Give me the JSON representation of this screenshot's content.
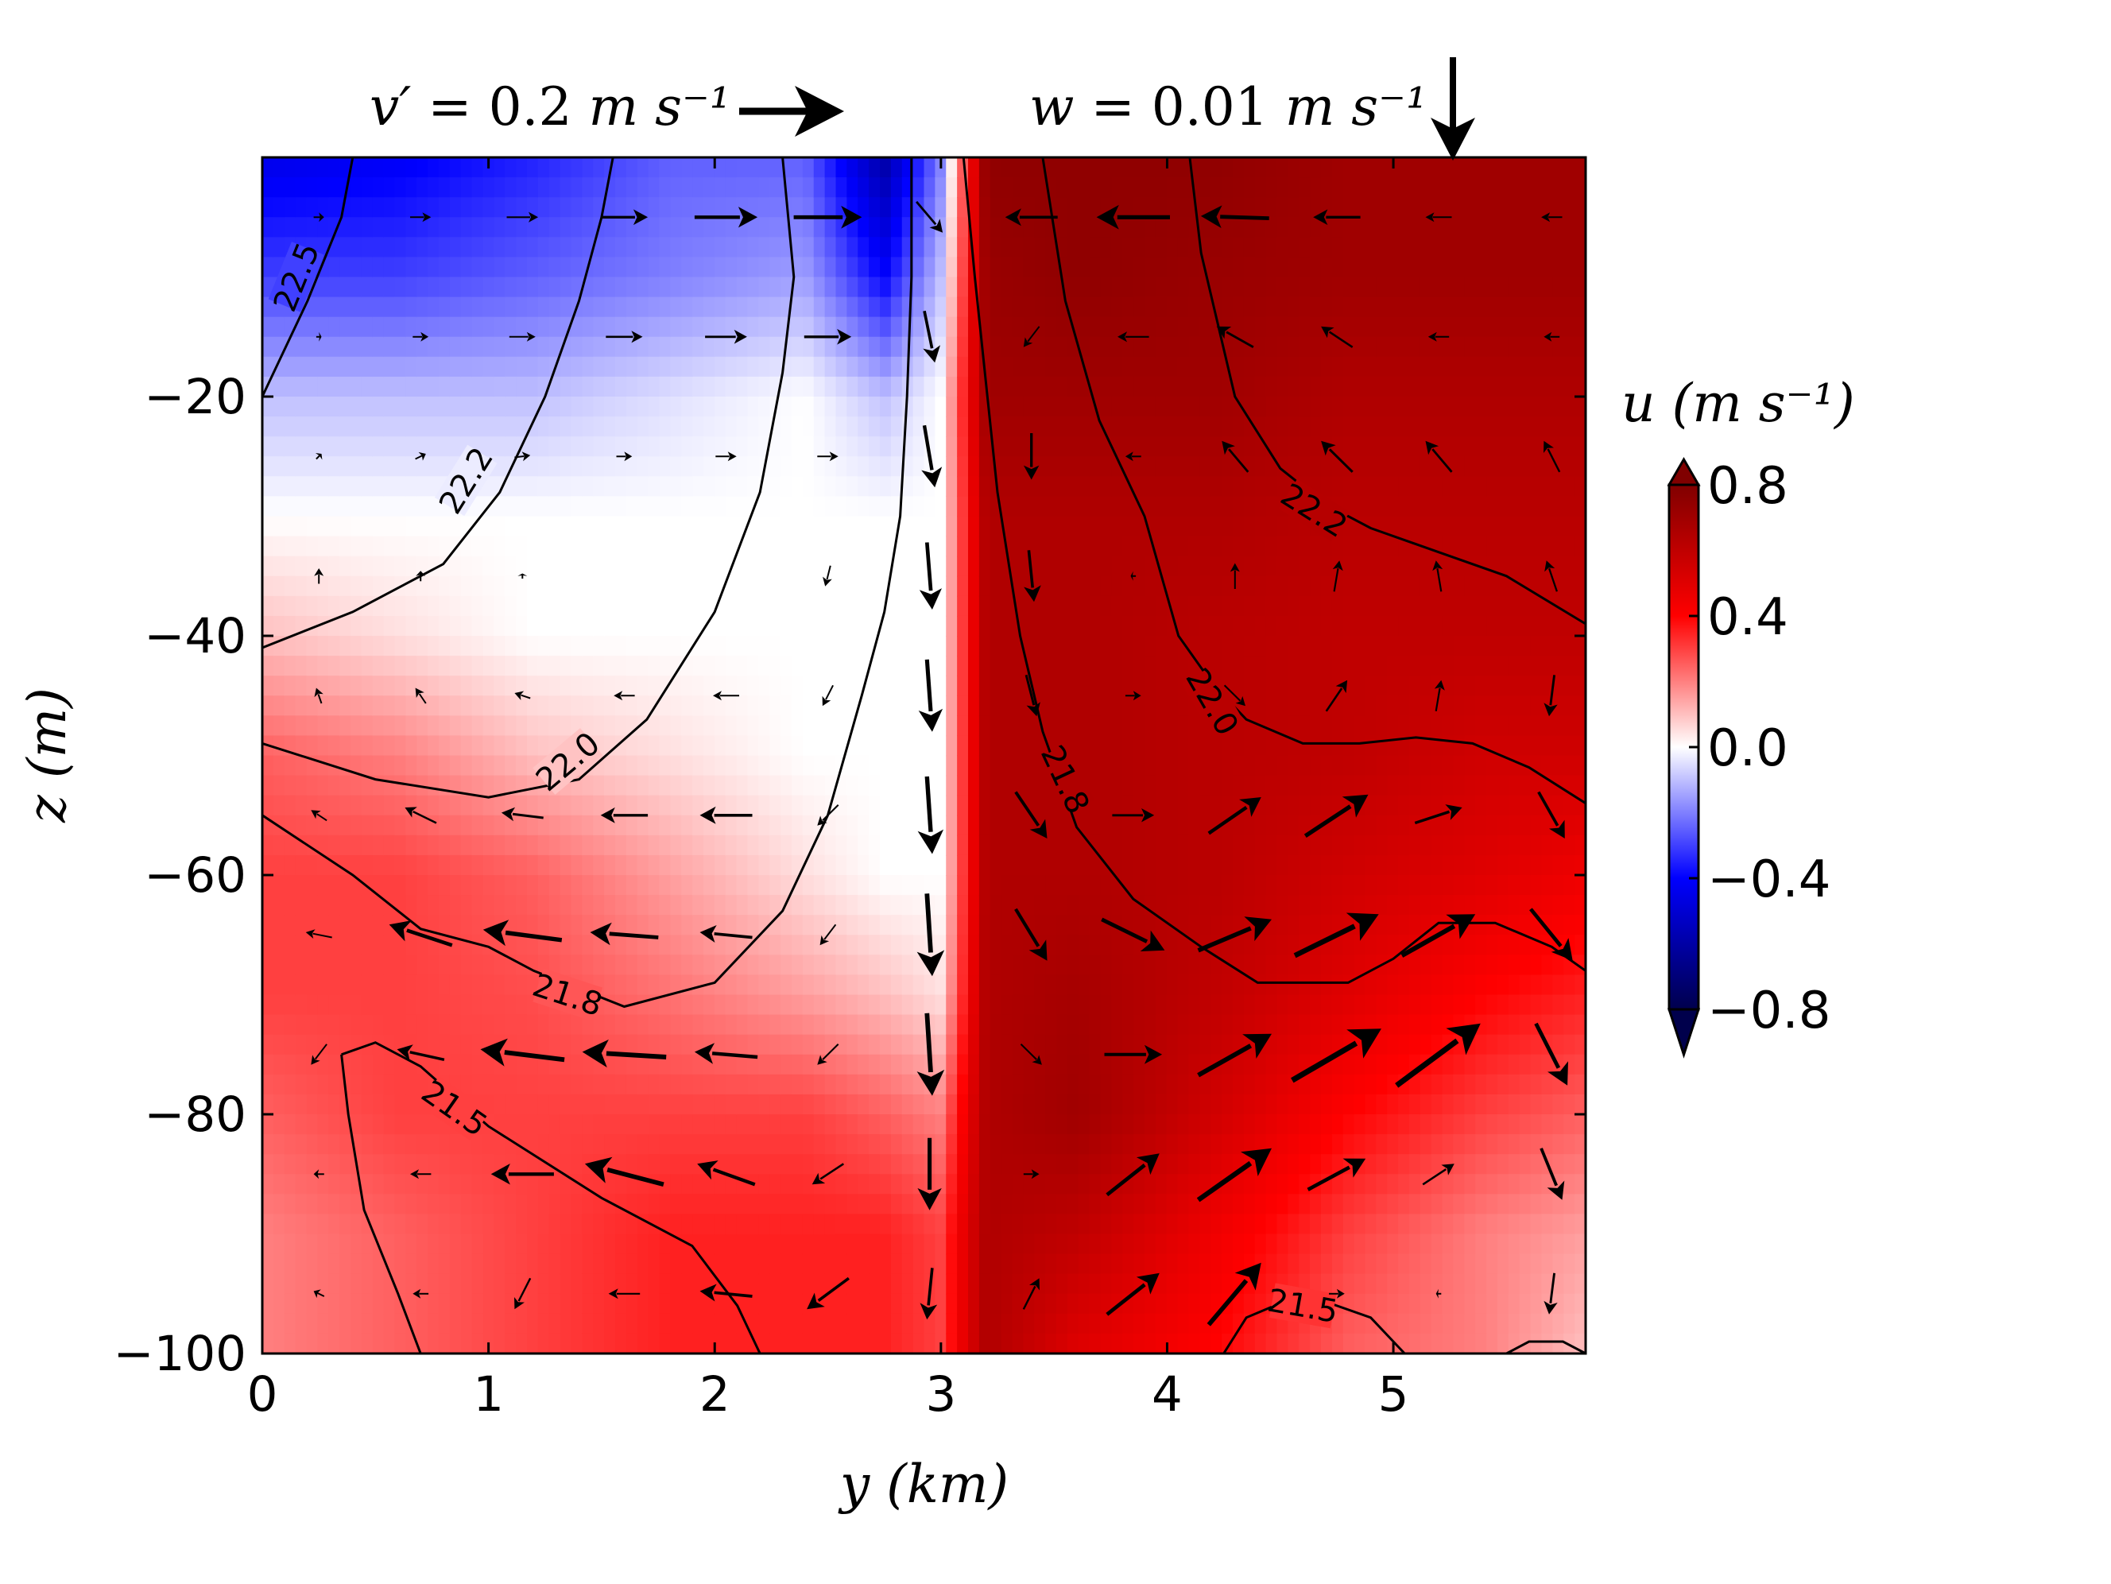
{
  "chart_data": {
    "type": "heatmap",
    "title": "",
    "xlabel": "y (km)",
    "ylabel": "z (m)",
    "xlim": [
      0,
      5.85
    ],
    "ylim": [
      -100,
      0
    ],
    "x_ticks": [
      "0",
      "1",
      "2",
      "3",
      "4",
      "5"
    ],
    "y_ticks": [
      "−20",
      "−40",
      "−60",
      "−80",
      "−100"
    ],
    "colorbar": {
      "label": "u (m s⁻¹)",
      "ticks": [
        "0.8",
        "0.4",
        "0.0",
        "−0.4",
        "−0.8"
      ],
      "range": [
        -0.8,
        0.8
      ],
      "colormap": "seismic",
      "extend": "both"
    },
    "quiver_keys": {
      "v_key": {
        "symbol": "v′",
        "value": "0.2",
        "unit": "m s⁻¹"
      },
      "w_key": {
        "symbol": "w",
        "value": "0.01",
        "unit": "m s⁻¹"
      }
    },
    "contour_levels": [
      "22.5",
      "22.2",
      "22.0",
      "21.8",
      "21.5"
    ],
    "colors": {
      "negative": "#5b5bff",
      "zero": "#ffffff",
      "positive": "#d40000",
      "strong_positive": "#a30000",
      "contour": "#000000"
    },
    "u_field_columns": [
      {
        "y": 0.0,
        "u": [
          -0.45,
          -0.3,
          -0.1,
          0.0,
          0.1,
          0.25,
          0.3,
          0.3,
          0.25,
          0.2,
          0.2
        ]
      },
      {
        "y": 0.6,
        "u": [
          -0.42,
          -0.3,
          -0.1,
          0.0,
          0.05,
          0.2,
          0.3,
          0.3,
          0.3,
          0.25,
          0.25
        ]
      },
      {
        "y": 1.2,
        "u": [
          -0.35,
          -0.25,
          -0.1,
          0.0,
          0.0,
          0.1,
          0.25,
          0.28,
          0.3,
          0.3,
          0.3
        ]
      },
      {
        "y": 1.8,
        "u": [
          -0.25,
          -0.2,
          -0.05,
          0.0,
          0.0,
          0.05,
          0.15,
          0.22,
          0.3,
          0.35,
          0.35
        ]
      },
      {
        "y": 2.4,
        "u": [
          -0.25,
          -0.15,
          0.0,
          0.0,
          0.0,
          0.0,
          0.05,
          0.15,
          0.3,
          0.35,
          0.35
        ]
      },
      {
        "y": 2.75,
        "u": [
          -0.6,
          -0.4,
          -0.1,
          0.0,
          0.0,
          0.0,
          0.0,
          0.1,
          0.25,
          0.35,
          0.35
        ]
      },
      {
        "y": 3.0,
        "u": [
          -0.2,
          -0.1,
          0.0,
          0.0,
          0.0,
          0.0,
          0.0,
          0.05,
          0.2,
          0.3,
          0.3
        ]
      },
      {
        "y": 3.2,
        "u": [
          0.75,
          0.72,
          0.7,
          0.65,
          0.65,
          0.65,
          0.65,
          0.65,
          0.65,
          0.65,
          0.65
        ]
      },
      {
        "y": 3.6,
        "u": [
          0.75,
          0.75,
          0.7,
          0.65,
          0.65,
          0.65,
          0.65,
          0.68,
          0.7,
          0.6,
          0.5
        ]
      },
      {
        "y": 4.2,
        "u": [
          0.75,
          0.72,
          0.7,
          0.65,
          0.62,
          0.62,
          0.62,
          0.6,
          0.55,
          0.45,
          0.4
        ]
      },
      {
        "y": 4.8,
        "u": [
          0.7,
          0.7,
          0.65,
          0.62,
          0.6,
          0.6,
          0.55,
          0.5,
          0.4,
          0.3,
          0.25
        ]
      },
      {
        "y": 5.4,
        "u": [
          0.7,
          0.7,
          0.65,
          0.62,
          0.6,
          0.55,
          0.5,
          0.4,
          0.3,
          0.2,
          0.2
        ]
      },
      {
        "y": 5.85,
        "u": [
          0.7,
          0.7,
          0.65,
          0.62,
          0.6,
          0.55,
          0.45,
          0.35,
          0.25,
          0.15,
          0.1
        ]
      }
    ],
    "u_field_z": [
      0,
      -10,
      -20,
      -30,
      -40,
      -50,
      -60,
      -70,
      -80,
      -90,
      -100
    ],
    "contours": [
      {
        "level": "22.5",
        "points": [
          [
            0,
            -20
          ],
          [
            0.2,
            -12
          ],
          [
            0.35,
            -5
          ],
          [
            0.4,
            0
          ]
        ]
      },
      {
        "level": "22.2",
        "points": [
          [
            0,
            -41
          ],
          [
            0.4,
            -38
          ],
          [
            0.8,
            -34
          ],
          [
            1.05,
            -28
          ],
          [
            1.25,
            -20
          ],
          [
            1.4,
            -12
          ],
          [
            1.5,
            -5
          ],
          [
            1.55,
            0
          ]
        ]
      },
      {
        "level": "22.0",
        "points": [
          [
            0,
            -49
          ],
          [
            0.5,
            -52
          ],
          [
            1.0,
            -53.5
          ],
          [
            1.4,
            -52
          ],
          [
            1.7,
            -47
          ],
          [
            2.0,
            -38
          ],
          [
            2.2,
            -28
          ],
          [
            2.3,
            -18
          ],
          [
            2.35,
            -10
          ],
          [
            2.3,
            0
          ]
        ]
      },
      {
        "level": "21.8",
        "points": [
          [
            0,
            -55
          ],
          [
            0.4,
            -60
          ],
          [
            0.7,
            -64.5
          ],
          [
            1.0,
            -66
          ],
          [
            1.2,
            -68
          ],
          [
            1.6,
            -71
          ],
          [
            2.0,
            -69
          ],
          [
            2.3,
            -63
          ],
          [
            2.5,
            -55
          ],
          [
            2.65,
            -45
          ],
          [
            2.75,
            -38
          ],
          [
            2.82,
            -30
          ],
          [
            2.85,
            -20
          ],
          [
            2.87,
            -10
          ],
          [
            2.87,
            0
          ]
        ]
      },
      {
        "level": "21.5",
        "points": [
          [
            0.35,
            -75
          ],
          [
            0.5,
            -74
          ],
          [
            0.7,
            -76
          ],
          [
            1.0,
            -81
          ],
          [
            1.5,
            -87
          ],
          [
            1.9,
            -91
          ],
          [
            2.1,
            -96
          ],
          [
            2.2,
            -100
          ]
        ]
      },
      {
        "level": "21.5",
        "points": [
          [
            0.35,
            -75
          ],
          [
            0.38,
            -80
          ],
          [
            0.45,
            -88
          ],
          [
            0.6,
            -95
          ],
          [
            0.7,
            -100
          ]
        ]
      },
      {
        "level": "21.8",
        "points": [
          [
            3.1,
            0
          ],
          [
            3.15,
            -10
          ],
          [
            3.25,
            -28
          ],
          [
            3.35,
            -40
          ],
          [
            3.45,
            -48
          ],
          [
            3.6,
            -56
          ],
          [
            3.85,
            -62
          ],
          [
            4.15,
            -66
          ],
          [
            4.4,
            -69
          ],
          [
            4.8,
            -69
          ],
          [
            5.0,
            -67
          ],
          [
            5.2,
            -64
          ],
          [
            5.45,
            -64
          ],
          [
            5.7,
            -66
          ],
          [
            5.85,
            -68
          ]
        ]
      },
      {
        "level": "22.0",
        "points": [
          [
            3.45,
            0
          ],
          [
            3.55,
            -12
          ],
          [
            3.7,
            -22
          ],
          [
            3.9,
            -30
          ],
          [
            4.05,
            -40
          ],
          [
            4.2,
            -44
          ],
          [
            4.35,
            -47
          ],
          [
            4.6,
            -49
          ],
          [
            4.85,
            -49
          ],
          [
            5.1,
            -48.5
          ],
          [
            5.35,
            -49
          ],
          [
            5.6,
            -51
          ],
          [
            5.85,
            -54
          ]
        ]
      },
      {
        "level": "22.2",
        "points": [
          [
            4.1,
            0
          ],
          [
            4.15,
            -8
          ],
          [
            4.3,
            -20
          ],
          [
            4.5,
            -26
          ],
          [
            4.7,
            -29
          ],
          [
            4.9,
            -31
          ],
          [
            5.2,
            -33
          ],
          [
            5.5,
            -35
          ],
          [
            5.85,
            -39
          ]
        ]
      },
      {
        "level": "21.5",
        "points": [
          [
            4.25,
            -100
          ],
          [
            4.35,
            -97
          ],
          [
            4.6,
            -95
          ],
          [
            4.9,
            -97
          ],
          [
            5.0,
            -99
          ],
          [
            5.05,
            -100
          ]
        ]
      },
      {
        "level": "21.5",
        "points": [
          [
            5.5,
            -100
          ],
          [
            5.6,
            -99
          ],
          [
            5.75,
            -99
          ],
          [
            5.85,
            -100
          ]
        ]
      }
    ],
    "contour_labels": [
      {
        "level": "22.5",
        "y": 0.15,
        "z": -10,
        "angle": -68
      },
      {
        "level": "22.2",
        "y": 0.9,
        "z": -27,
        "angle": -58
      },
      {
        "level": "22.0",
        "y": 1.35,
        "z": -50.5,
        "angle": -40
      },
      {
        "level": "21.8",
        "y": 1.35,
        "z": -70,
        "angle": 18
      },
      {
        "level": "21.5",
        "y": 0.85,
        "z": -79.5,
        "angle": 35
      },
      {
        "level": "22.2",
        "y": 4.65,
        "z": -29.5,
        "angle": 32
      },
      {
        "level": "22.0",
        "y": 4.2,
        "z": -45.5,
        "angle": 60
      },
      {
        "level": "21.8",
        "y": 3.55,
        "z": -52,
        "angle": 65
      },
      {
        "level": "21.5",
        "y": 4.6,
        "z": -96,
        "angle": 10
      }
    ],
    "quiver_y": [
      0.25,
      0.7,
      1.15,
      1.6,
      2.05,
      2.5,
      2.95,
      3.4,
      3.85,
      4.3,
      4.75,
      5.2,
      5.7
    ],
    "quiver_z": [
      -5,
      -15,
      -25,
      -35,
      -45,
      -55,
      -65,
      -75,
      -85,
      -95
    ],
    "quiver_vectors": [
      [
        [
          0.02,
          0.0
        ],
        [
          0.04,
          0.0
        ],
        [
          0.06,
          0.0
        ],
        [
          0.09,
          0.0
        ],
        [
          0.12,
          0.0
        ],
        [
          0.13,
          0.0
        ],
        [
          0.05,
          -0.3
        ],
        [
          -0.1,
          0.0
        ],
        [
          -0.14,
          0.0
        ],
        [
          -0.13,
          0.02
        ],
        [
          -0.09,
          0.0
        ],
        [
          -0.05,
          0.0
        ],
        [
          -0.04,
          0.0
        ]
      ],
      [
        [
          0.01,
          0.0
        ],
        [
          0.03,
          0.0
        ],
        [
          0.05,
          0.0
        ],
        [
          0.07,
          0.0
        ],
        [
          0.08,
          0.0
        ],
        [
          0.09,
          0.0
        ],
        [
          0.02,
          -0.5
        ],
        [
          -0.03,
          -0.2
        ],
        [
          -0.06,
          0.0
        ],
        [
          -0.07,
          0.2
        ],
        [
          -0.06,
          0.2
        ],
        [
          -0.04,
          0.0
        ],
        [
          -0.03,
          0.0
        ]
      ],
      [
        [
          0.01,
          0.05
        ],
        [
          0.02,
          0.05
        ],
        [
          0.03,
          0.02
        ],
        [
          0.03,
          0.0
        ],
        [
          0.04,
          0.0
        ],
        [
          0.04,
          0.0
        ],
        [
          0.02,
          -0.6
        ],
        [
          0.0,
          -0.45
        ],
        [
          -0.03,
          0.0
        ],
        [
          -0.05,
          0.3
        ],
        [
          -0.06,
          0.3
        ],
        [
          -0.05,
          0.3
        ],
        [
          -0.03,
          0.3
        ]
      ],
      [
        [
          0.0,
          0.15
        ],
        [
          0.0,
          0.1
        ],
        [
          0.0,
          0.05
        ],
        [
          0.0,
          0.0
        ],
        [
          0.0,
          0.0
        ],
        [
          -0.01,
          -0.2
        ],
        [
          0.01,
          -0.65
        ],
        [
          0.01,
          -0.5
        ],
        [
          -0.01,
          0.0
        ],
        [
          0.0,
          0.25
        ],
        [
          0.01,
          0.3
        ],
        [
          -0.01,
          0.3
        ],
        [
          -0.02,
          0.3
        ]
      ],
      [
        [
          -0.01,
          0.15
        ],
        [
          -0.02,
          0.15
        ],
        [
          -0.03,
          0.05
        ],
        [
          -0.04,
          0.0
        ],
        [
          -0.05,
          0.0
        ],
        [
          -0.02,
          -0.2
        ],
        [
          0.01,
          -0.7
        ],
        [
          0.02,
          -0.4
        ],
        [
          0.03,
          0.0
        ],
        [
          0.04,
          -0.2
        ],
        [
          0.04,
          0.3
        ],
        [
          0.01,
          0.3
        ],
        [
          -0.01,
          -0.4
        ]
      ],
      [
        [
          -0.03,
          0.1
        ],
        [
          -0.06,
          0.15
        ],
        [
          -0.08,
          0.05
        ],
        [
          -0.09,
          0.0
        ],
        [
          -0.1,
          0.0
        ],
        [
          -0.04,
          -0.2
        ],
        [
          0.01,
          -0.75
        ],
        [
          0.06,
          -0.45
        ],
        [
          0.08,
          0.0
        ],
        [
          0.1,
          0.35
        ],
        [
          0.12,
          0.4
        ],
        [
          0.09,
          0.15
        ],
        [
          0.05,
          -0.45
        ]
      ],
      [
        [
          -0.05,
          0.05
        ],
        [
          -0.12,
          0.2
        ],
        [
          -0.15,
          0.1
        ],
        [
          -0.13,
          0.05
        ],
        [
          -0.1,
          0.05
        ],
        [
          -0.03,
          -0.2
        ],
        [
          0.01,
          -0.8
        ],
        [
          0.06,
          -0.5
        ],
        [
          0.12,
          -0.3
        ],
        [
          0.14,
          0.3
        ],
        [
          0.16,
          0.4
        ],
        [
          0.14,
          0.4
        ],
        [
          0.08,
          -0.5
        ]
      ],
      [
        [
          -0.03,
          -0.2
        ],
        [
          -0.09,
          0.1
        ],
        [
          -0.16,
          0.1
        ],
        [
          -0.16,
          0.05
        ],
        [
          -0.12,
          0.05
        ],
        [
          -0.04,
          -0.2
        ],
        [
          0.01,
          -0.8
        ],
        [
          0.04,
          -0.2
        ],
        [
          0.11,
          0.0
        ],
        [
          0.14,
          0.4
        ],
        [
          0.17,
          0.5
        ],
        [
          0.16,
          0.6
        ],
        [
          0.06,
          -0.6
        ]
      ],
      [
        [
          -0.02,
          0.0
        ],
        [
          -0.04,
          0.0
        ],
        [
          -0.12,
          0.0
        ],
        [
          -0.15,
          0.2
        ],
        [
          -0.11,
          0.2
        ],
        [
          -0.06,
          -0.2
        ],
        [
          0.0,
          -0.7
        ],
        [
          0.03,
          0.0
        ],
        [
          0.1,
          0.4
        ],
        [
          0.14,
          0.5
        ],
        [
          0.11,
          0.3
        ],
        [
          0.06,
          0.2
        ],
        [
          0.04,
          -0.5
        ]
      ],
      [
        [
          -0.02,
          0.05
        ],
        [
          -0.03,
          0.0
        ],
        [
          -0.03,
          -0.3
        ],
        [
          -0.06,
          0.0
        ],
        [
          -0.1,
          0.05
        ],
        [
          -0.08,
          -0.3
        ],
        [
          -0.01,
          -0.5
        ],
        [
          0.03,
          0.3
        ],
        [
          0.1,
          0.4
        ],
        [
          0.1,
          0.6
        ],
        [
          0.03,
          0.0
        ],
        [
          -0.01,
          0.0
        ],
        [
          -0.01,
          -0.4
        ]
      ]
    ]
  }
}
